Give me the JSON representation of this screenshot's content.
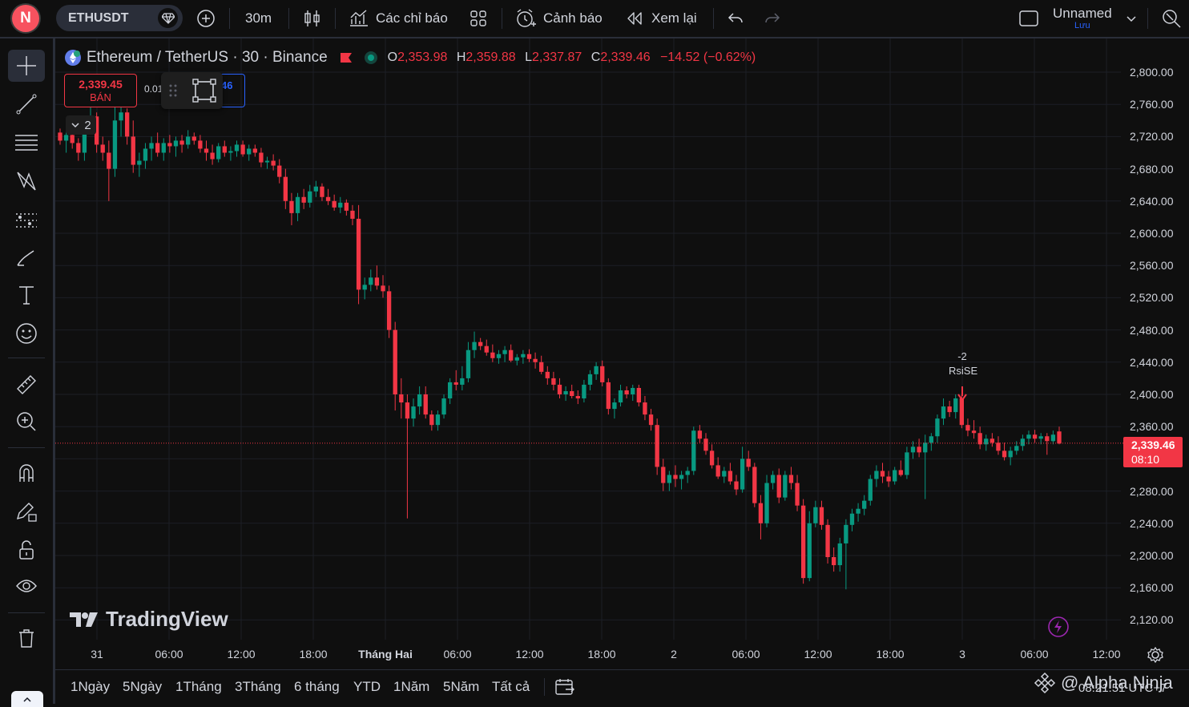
{
  "header": {
    "avatar_letter": "N",
    "symbol": "ETHUSDT",
    "interval": "30m",
    "indicators_label": "Các chỉ báo",
    "alerts_label": "Cảnh báo",
    "replay_label": "Xem lại",
    "layout_name": "Unnamed",
    "layout_status": "Lưu"
  },
  "legend": {
    "title": "Ethereum / TetherUS · 30 · Binance",
    "o_key": "O",
    "o_val": "2,353.98",
    "h_key": "H",
    "h_val": "2,359.88",
    "l_key": "L",
    "l_val": "2,337.87",
    "c_key": "C",
    "c_val": "2,339.46",
    "change": "−14.52 (−0.62%)"
  },
  "trade": {
    "sell_price": "2,339.45",
    "sell_label": "BÁN",
    "spread": "0.01",
    "buy_price_partial": "46",
    "indicator_count": "2"
  },
  "price_axis": [
    "2,800.00",
    "2,760.00",
    "2,720.00",
    "2,680.00",
    "2,640.00",
    "2,600.00",
    "2,560.00",
    "2,520.00",
    "2,480.00",
    "2,440.00",
    "2,400.00",
    "2,360.00",
    "2,280.00",
    "2,240.00",
    "2,200.00",
    "2,160.00",
    "2,120.00"
  ],
  "current_price": {
    "value": "2,339.46",
    "countdown": "08:10"
  },
  "time_axis": [
    "31",
    "06:00",
    "12:00",
    "18:00",
    "Tháng Hai",
    "06:00",
    "12:00",
    "18:00",
    "2",
    "06:00",
    "12:00",
    "18:00",
    "3",
    "06:00",
    "12:00"
  ],
  "signal": {
    "value": "-2",
    "name": "RsiSE"
  },
  "watermark": "TradingView",
  "ranges": [
    "1Ngày",
    "5Ngày",
    "1Tháng",
    "3Tháng",
    "6 tháng",
    "YTD",
    "1Năm",
    "5Năm",
    "Tất cả"
  ],
  "footer": {
    "brand": "@ Alpha Ninja",
    "clock": "08:21:51 UTC+7"
  },
  "colors": {
    "up": "#089981",
    "down": "#f23645",
    "background": "#0f0f0f",
    "accent": "#2962ff"
  },
  "chart_data": {
    "type": "candlestick",
    "symbol": "ETHUSDT",
    "interval": "30",
    "ylim": [
      2100,
      2820
    ],
    "grid": true,
    "candles": [
      [
        2725,
        2730,
        2710,
        2715
      ],
      [
        2715,
        2730,
        2700,
        2722
      ],
      [
        2722,
        2735,
        2705,
        2712
      ],
      [
        2712,
        2718,
        2690,
        2700
      ],
      [
        2700,
        2745,
        2690,
        2735
      ],
      [
        2735,
        2760,
        2725,
        2745
      ],
      [
        2745,
        2750,
        2700,
        2710
      ],
      [
        2710,
        2720,
        2690,
        2700
      ],
      [
        2700,
        2715,
        2640,
        2680
      ],
      [
        2680,
        2760,
        2670,
        2740
      ],
      [
        2740,
        2760,
        2720,
        2750
      ],
      [
        2750,
        2755,
        2710,
        2720
      ],
      [
        2720,
        2740,
        2675,
        2685
      ],
      [
        2685,
        2700,
        2670,
        2690
      ],
      [
        2690,
        2712,
        2680,
        2705
      ],
      [
        2705,
        2720,
        2690,
        2712
      ],
      [
        2712,
        2725,
        2695,
        2700
      ],
      [
        2700,
        2718,
        2690,
        2712
      ],
      [
        2712,
        2722,
        2700,
        2708
      ],
      [
        2708,
        2720,
        2695,
        2715
      ],
      [
        2715,
        2722,
        2700,
        2710
      ],
      [
        2710,
        2728,
        2705,
        2720
      ],
      [
        2720,
        2725,
        2710,
        2715
      ],
      [
        2715,
        2722,
        2700,
        2705
      ],
      [
        2705,
        2715,
        2690,
        2700
      ],
      [
        2700,
        2710,
        2685,
        2692
      ],
      [
        2692,
        2712,
        2688,
        2708
      ],
      [
        2708,
        2715,
        2695,
        2700
      ],
      [
        2700,
        2708,
        2690,
        2702
      ],
      [
        2702,
        2715,
        2695,
        2710
      ],
      [
        2710,
        2715,
        2695,
        2698
      ],
      [
        2698,
        2710,
        2690,
        2705
      ],
      [
        2705,
        2710,
        2695,
        2700
      ],
      [
        2700,
        2706,
        2682,
        2688
      ],
      [
        2688,
        2695,
        2680,
        2690
      ],
      [
        2690,
        2698,
        2678,
        2684
      ],
      [
        2684,
        2692,
        2662,
        2670
      ],
      [
        2670,
        2680,
        2630,
        2640
      ],
      [
        2640,
        2650,
        2610,
        2625
      ],
      [
        2625,
        2650,
        2615,
        2645
      ],
      [
        2645,
        2655,
        2630,
        2638
      ],
      [
        2638,
        2660,
        2632,
        2652
      ],
      [
        2652,
        2665,
        2645,
        2658
      ],
      [
        2658,
        2662,
        2640,
        2645
      ],
      [
        2645,
        2655,
        2635,
        2640
      ],
      [
        2640,
        2648,
        2628,
        2632
      ],
      [
        2632,
        2645,
        2625,
        2638
      ],
      [
        2638,
        2642,
        2622,
        2628
      ],
      [
        2628,
        2635,
        2610,
        2618
      ],
      [
        2618,
        2635,
        2512,
        2530
      ],
      [
        2530,
        2545,
        2518,
        2536
      ],
      [
        2536,
        2555,
        2528,
        2545
      ],
      [
        2545,
        2560,
        2530,
        2535
      ],
      [
        2535,
        2548,
        2520,
        2528
      ],
      [
        2528,
        2535,
        2470,
        2480
      ],
      [
        2480,
        2490,
        2380,
        2400
      ],
      [
        2400,
        2420,
        2370,
        2390
      ],
      [
        2390,
        2400,
        2246,
        2370
      ],
      [
        2370,
        2395,
        2360,
        2385
      ],
      [
        2385,
        2410,
        2375,
        2400
      ],
      [
        2400,
        2410,
        2370,
        2375
      ],
      [
        2375,
        2380,
        2355,
        2362
      ],
      [
        2362,
        2380,
        2355,
        2375
      ],
      [
        2375,
        2400,
        2370,
        2395
      ],
      [
        2395,
        2420,
        2388,
        2415
      ],
      [
        2415,
        2430,
        2405,
        2412
      ],
      [
        2412,
        2435,
        2405,
        2420
      ],
      [
        2420,
        2465,
        2415,
        2455
      ],
      [
        2455,
        2478,
        2445,
        2465
      ],
      [
        2465,
        2470,
        2455,
        2460
      ],
      [
        2460,
        2468,
        2448,
        2452
      ],
      [
        2452,
        2462,
        2440,
        2445
      ],
      [
        2445,
        2455,
        2438,
        2450
      ],
      [
        2450,
        2460,
        2440,
        2455
      ],
      [
        2455,
        2462,
        2440,
        2442
      ],
      [
        2442,
        2450,
        2436,
        2446
      ],
      [
        2446,
        2455,
        2438,
        2450
      ],
      [
        2450,
        2456,
        2440,
        2444
      ],
      [
        2444,
        2452,
        2432,
        2440
      ],
      [
        2440,
        2448,
        2425,
        2428
      ],
      [
        2428,
        2435,
        2412,
        2420
      ],
      [
        2420,
        2428,
        2405,
        2412
      ],
      [
        2412,
        2420,
        2395,
        2400
      ],
      [
        2400,
        2410,
        2392,
        2404
      ],
      [
        2404,
        2412,
        2395,
        2398
      ],
      [
        2398,
        2405,
        2388,
        2395
      ],
      [
        2395,
        2418,
        2390,
        2412
      ],
      [
        2412,
        2430,
        2405,
        2425
      ],
      [
        2425,
        2440,
        2418,
        2435
      ],
      [
        2435,
        2442,
        2410,
        2415
      ],
      [
        2415,
        2420,
        2375,
        2382
      ],
      [
        2382,
        2395,
        2370,
        2390
      ],
      [
        2390,
        2412,
        2385,
        2405
      ],
      [
        2405,
        2410,
        2395,
        2400
      ],
      [
        2400,
        2412,
        2392,
        2408
      ],
      [
        2408,
        2412,
        2385,
        2390
      ],
      [
        2390,
        2398,
        2368,
        2375
      ],
      [
        2375,
        2382,
        2355,
        2362
      ],
      [
        2362,
        2370,
        2300,
        2310
      ],
      [
        2310,
        2320,
        2280,
        2290
      ],
      [
        2290,
        2305,
        2280,
        2300
      ],
      [
        2300,
        2312,
        2285,
        2295
      ],
      [
        2295,
        2305,
        2282,
        2300
      ],
      [
        2300,
        2310,
        2290,
        2305
      ],
      [
        2305,
        2360,
        2300,
        2355
      ],
      [
        2355,
        2362,
        2340,
        2345
      ],
      [
        2345,
        2352,
        2325,
        2330
      ],
      [
        2330,
        2338,
        2308,
        2312
      ],
      [
        2312,
        2322,
        2295,
        2298
      ],
      [
        2298,
        2310,
        2290,
        2305
      ],
      [
        2305,
        2315,
        2288,
        2292
      ],
      [
        2292,
        2300,
        2275,
        2282
      ],
      [
        2282,
        2335,
        2278,
        2320
      ],
      [
        2320,
        2330,
        2305,
        2310
      ],
      [
        2310,
        2315,
        2260,
        2265
      ],
      [
        2265,
        2275,
        2220,
        2240
      ],
      [
        2240,
        2300,
        2235,
        2290
      ],
      [
        2290,
        2305,
        2282,
        2300
      ],
      [
        2300,
        2308,
        2265,
        2272
      ],
      [
        2272,
        2305,
        2268,
        2300
      ],
      [
        2300,
        2310,
        2282,
        2290
      ],
      [
        2290,
        2300,
        2255,
        2262
      ],
      [
        2262,
        2270,
        2165,
        2172
      ],
      [
        2172,
        2255,
        2168,
        2240
      ],
      [
        2240,
        2268,
        2235,
        2260
      ],
      [
        2260,
        2268,
        2232,
        2238
      ],
      [
        2238,
        2245,
        2190,
        2198
      ],
      [
        2198,
        2210,
        2180,
        2188
      ],
      [
        2188,
        2222,
        2180,
        2215
      ],
      [
        2215,
        2245,
        2158,
        2238
      ],
      [
        2238,
        2258,
        2230,
        2252
      ],
      [
        2252,
        2265,
        2242,
        2258
      ],
      [
        2258,
        2275,
        2250,
        2268
      ],
      [
        2268,
        2300,
        2262,
        2295
      ],
      [
        2295,
        2312,
        2285,
        2305
      ],
      [
        2305,
        2315,
        2290,
        2298
      ],
      [
        2298,
        2305,
        2285,
        2292
      ],
      [
        2292,
        2310,
        2288,
        2306
      ],
      [
        2306,
        2318,
        2298,
        2300
      ],
      [
        2300,
        2335,
        2295,
        2328
      ],
      [
        2328,
        2342,
        2320,
        2335
      ],
      [
        2335,
        2345,
        2322,
        2328
      ],
      [
        2328,
        2350,
        2270,
        2340
      ],
      [
        2340,
        2352,
        2330,
        2348
      ],
      [
        2348,
        2375,
        2340,
        2370
      ],
      [
        2370,
        2395,
        2362,
        2385
      ],
      [
        2385,
        2392,
        2372,
        2378
      ],
      [
        2378,
        2400,
        2370,
        2395
      ],
      [
        2395,
        2400,
        2358,
        2362
      ],
      [
        2362,
        2370,
        2348,
        2355
      ],
      [
        2355,
        2368,
        2345,
        2352
      ],
      [
        2352,
        2360,
        2332,
        2338
      ],
      [
        2338,
        2350,
        2330,
        2345
      ],
      [
        2345,
        2352,
        2335,
        2340
      ],
      [
        2340,
        2348,
        2325,
        2330
      ],
      [
        2330,
        2340,
        2318,
        2322
      ],
      [
        2322,
        2335,
        2312,
        2330
      ],
      [
        2330,
        2342,
        2325,
        2336
      ],
      [
        2336,
        2350,
        2330,
        2345
      ],
      [
        2345,
        2355,
        2338,
        2350
      ],
      [
        2350,
        2356,
        2340,
        2345
      ],
      [
        2345,
        2352,
        2338,
        2348
      ],
      [
        2348,
        2352,
        2325,
        2342
      ],
      [
        2342,
        2355,
        2338,
        2350
      ],
      [
        2354,
        2360,
        2338,
        2339
      ]
    ]
  }
}
